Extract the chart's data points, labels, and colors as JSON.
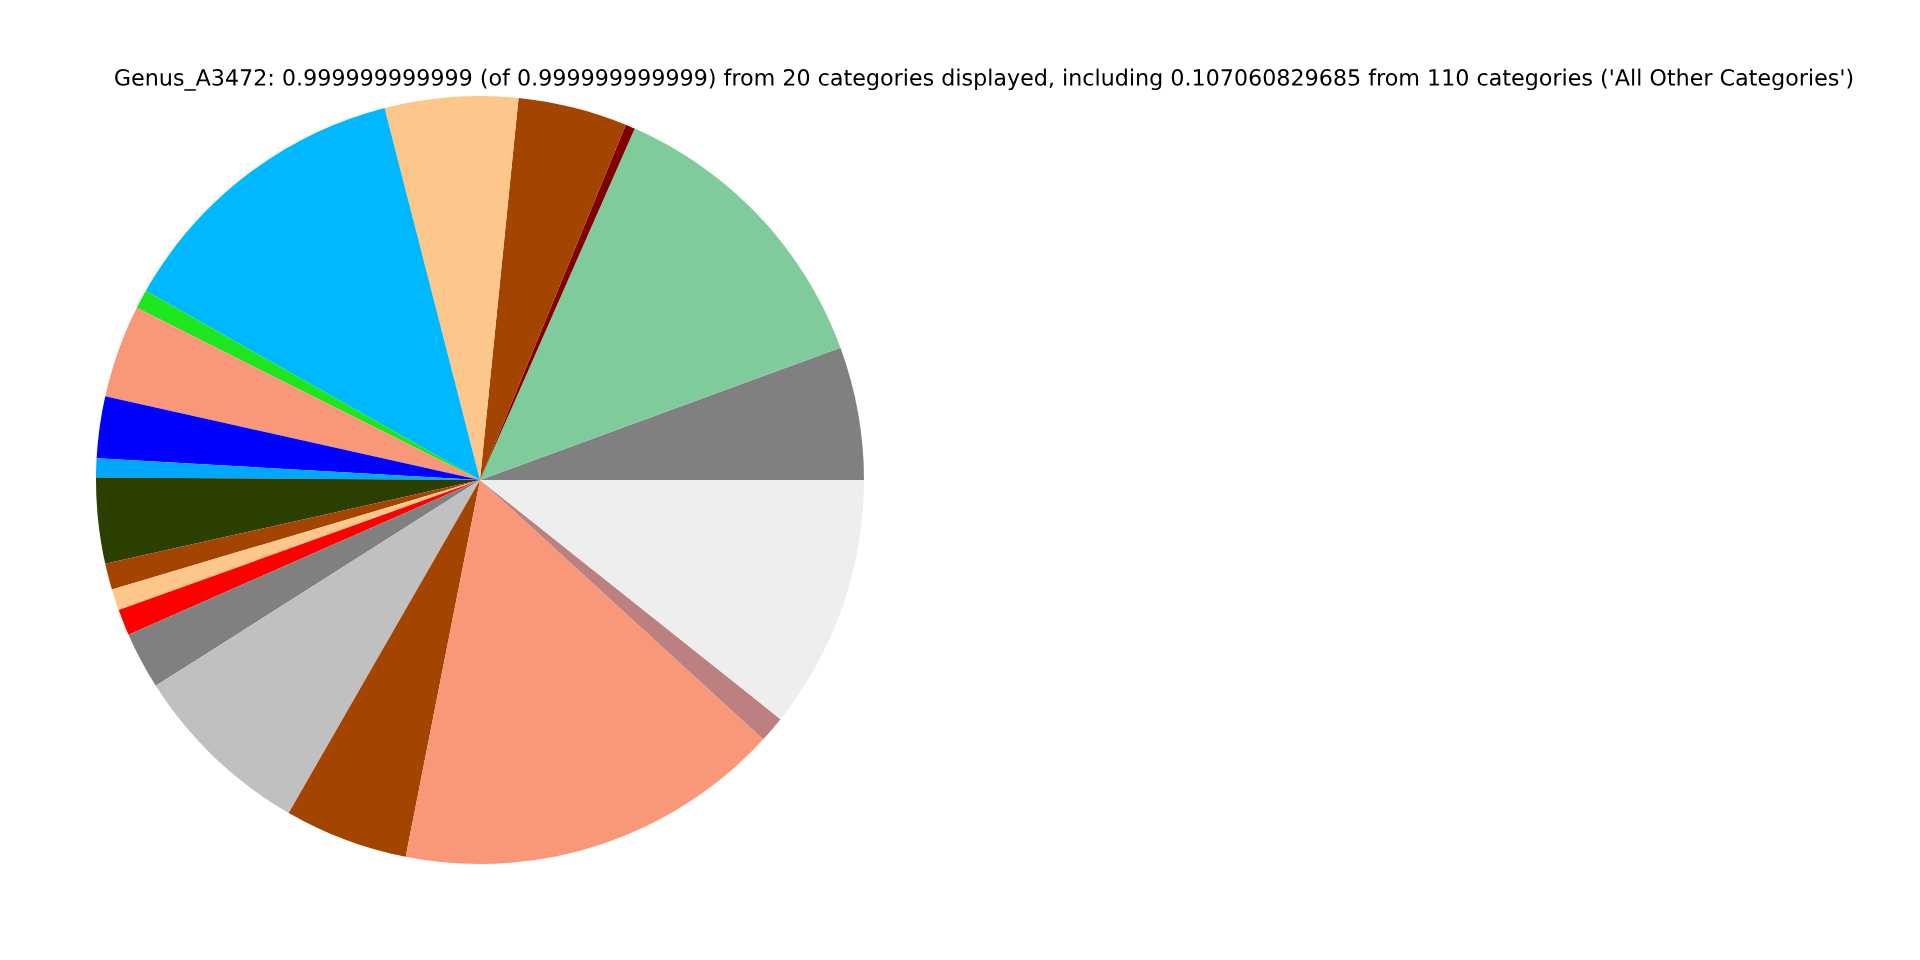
{
  "chart_data": {
    "type": "pie",
    "title": "Genus_A3472: 0.999999999999 (of 0.999999999999) from 20 categories displayed, including 0.107060829685 from 110 categories ('All Other Categories')",
    "categories": [
      null,
      null,
      null,
      null,
      null,
      null,
      null,
      null,
      null,
      null,
      null,
      null,
      null,
      null,
      null,
      null,
      null,
      null,
      null,
      null
    ],
    "values": [
      5.6,
      12.8,
      0.4,
      4.6,
      5.6,
      12.8,
      0.8,
      3.9,
      2.6,
      0.8,
      3.6,
      1.1,
      0.9,
      1.1,
      2.4,
      7.7,
      5.2,
      16.3,
      1.1,
      10.7
    ],
    "colors": [
      "#808080",
      "#80cb9b",
      "#800000",
      "#a34400",
      "#fdc68a",
      "#00b8ff",
      "#1ee61e",
      "#f99879",
      "#0000ff",
      "#00a7ff",
      "#2b3f00",
      "#a34400",
      "#fdc68a",
      "#ff0000",
      "#808080",
      "#c0c0c0",
      "#a34400",
      "#f99879",
      "#bc8080",
      "#eeeeee"
    ],
    "legend": false
  }
}
